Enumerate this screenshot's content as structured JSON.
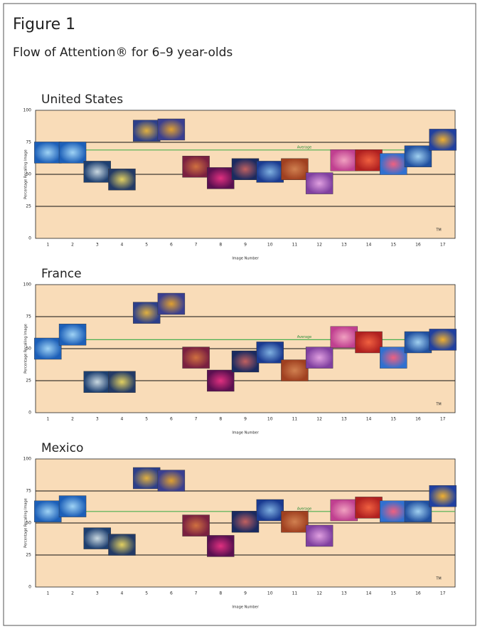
{
  "figure": "Figure 1",
  "subtitle": "Flow of Attention® for 6–9 year-olds",
  "chart_data": [
    {
      "type": "scatter",
      "title": "United States",
      "y_label": "Percentage Recalling Image",
      "x_label": "Image Number",
      "categories": [
        "1",
        "2",
        "3",
        "4",
        "5",
        "6",
        "7",
        "8",
        "9",
        "10",
        "11",
        "12",
        "13",
        "14",
        "15",
        "16",
        "17"
      ],
      "values": [
        67,
        67,
        52,
        46,
        84,
        85,
        56,
        47,
        54,
        52,
        54,
        43,
        61,
        61,
        58,
        64,
        77
      ],
      "ylim": [
        0,
        100
      ],
      "yticks": [
        0,
        25,
        50,
        75,
        100
      ],
      "grid": true,
      "average": {
        "label": "Average",
        "value": 69
      },
      "mark": "TM"
    },
    {
      "type": "scatter",
      "title": "France",
      "y_label": "Percentage Recalling Image",
      "x_label": "Image Number",
      "categories": [
        "1",
        "2",
        "3",
        "4",
        "5",
        "6",
        "7",
        "8",
        "9",
        "10",
        "11",
        "12",
        "13",
        "14",
        "15",
        "16",
        "17"
      ],
      "values": [
        50,
        61,
        24,
        24,
        78,
        85,
        43,
        25,
        40,
        47,
        33,
        43,
        59,
        55,
        43,
        55,
        57
      ],
      "ylim": [
        0,
        100
      ],
      "yticks": [
        0,
        25,
        50,
        75,
        100
      ],
      "grid": true,
      "average": {
        "label": "Average",
        "value": 57
      },
      "mark": "TM"
    },
    {
      "type": "scatter",
      "title": "Mexico",
      "y_label": "Percentage Recalling Image",
      "x_label": "Image Number",
      "categories": [
        "1",
        "2",
        "3",
        "4",
        "5",
        "6",
        "7",
        "8",
        "9",
        "10",
        "11",
        "12",
        "13",
        "14",
        "15",
        "16",
        "17"
      ],
      "values": [
        59,
        63,
        38,
        33,
        85,
        83,
        48,
        32,
        51,
        60,
        51,
        40,
        60,
        62,
        59,
        59,
        71
      ],
      "ylim": [
        0,
        100
      ],
      "yticks": [
        0,
        25,
        50,
        75,
        100
      ],
      "grid": true,
      "average": {
        "label": "Average",
        "value": 59
      },
      "mark": "TM"
    }
  ]
}
